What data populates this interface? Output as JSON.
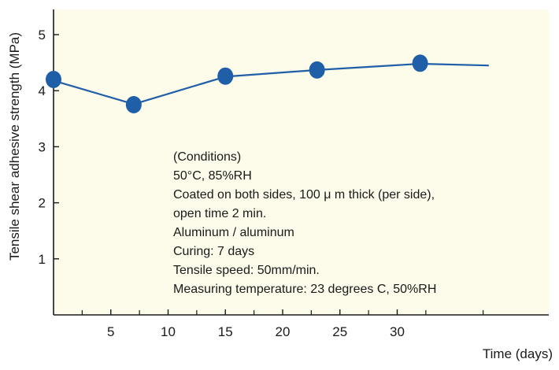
{
  "chart_data": {
    "type": "line",
    "title": "",
    "xlabel": "Time (days)",
    "ylabel": "Tensile shear adhesive strength (MPa)",
    "xlim": [
      0,
      38
    ],
    "ylim": [
      0,
      5.4
    ],
    "x_ticks": [
      5,
      10,
      15,
      20,
      25,
      30
    ],
    "x_tick_labels": [
      "5",
      "10",
      "15",
      "20",
      "25",
      "30"
    ],
    "y_ticks": [
      1,
      2,
      3,
      4,
      5
    ],
    "y_tick_labels": [
      "1",
      "2",
      "3",
      "4",
      "5"
    ],
    "grid": false,
    "legend": "none",
    "series": [
      {
        "line_x": [
          0,
          7,
          15,
          23,
          32,
          38
        ],
        "line_y": [
          4.18,
          3.76,
          4.25,
          4.37,
          4.48,
          4.45
        ],
        "x": [
          0,
          7,
          15,
          23,
          32
        ],
        "y": [
          4.2,
          3.75,
          4.26,
          4.37,
          4.49
        ]
      }
    ],
    "annotation_lines": [
      "(Conditions)",
      "50°C, 85%RH",
      "Coated on both sides, 100 μ m thick (per side),",
      "open time 2 min.",
      "Aluminum / aluminum",
      "Curing: 7 days",
      "Tensile speed: 50mm/min.",
      "Measuring temperature: 23 degrees C, 50%RH"
    ],
    "colors": {
      "plot_background": "#fdfbe9",
      "series": "#1f5fa8",
      "marker": "#1f5fa8",
      "axis": "#1a1a1a"
    }
  }
}
